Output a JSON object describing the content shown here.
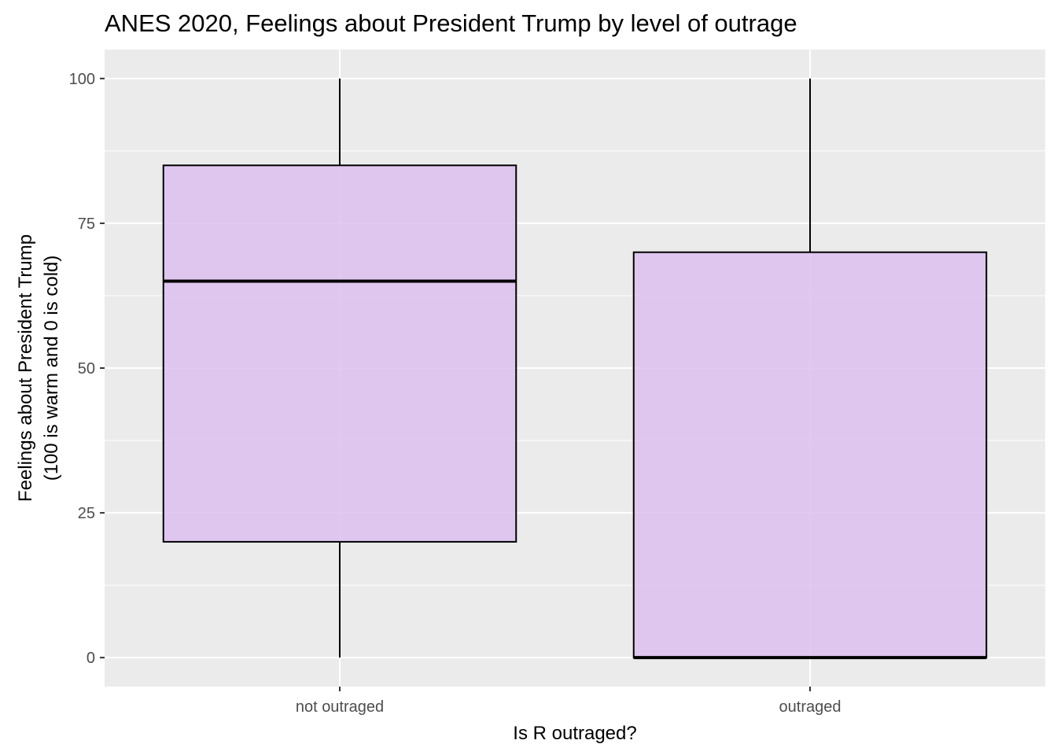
{
  "chart_data": {
    "type": "boxplot",
    "title": "ANES 2020, Feelings about President Trump by level of outrage",
    "xlabel": "Is R outraged?",
    "ylabel_lines": [
      "Feelings about President Trump",
      "(100 is warm and 0 is cold)"
    ],
    "categories": [
      "not outraged",
      "outraged"
    ],
    "boxes": [
      {
        "category": "not outraged",
        "min": 0,
        "q1": 20,
        "median": 65,
        "q3": 85,
        "max": 100
      },
      {
        "category": "outraged",
        "min": 0,
        "q1": 0,
        "median": 0,
        "q3": 70,
        "max": 100
      }
    ],
    "ylim": [
      -5,
      105
    ],
    "y_ticks": [
      0,
      25,
      50,
      75,
      100
    ],
    "y_minor_ticks": [
      12.5,
      37.5,
      62.5,
      87.5
    ],
    "grid": true,
    "legend": "none",
    "colors": {
      "panel_background": "#ebebeb",
      "grid": "#ffffff",
      "box_fill": "#dcbfee",
      "box_stroke": "#000000",
      "tick_text": "#4d4d4d",
      "tick_mark": "#333333"
    }
  }
}
